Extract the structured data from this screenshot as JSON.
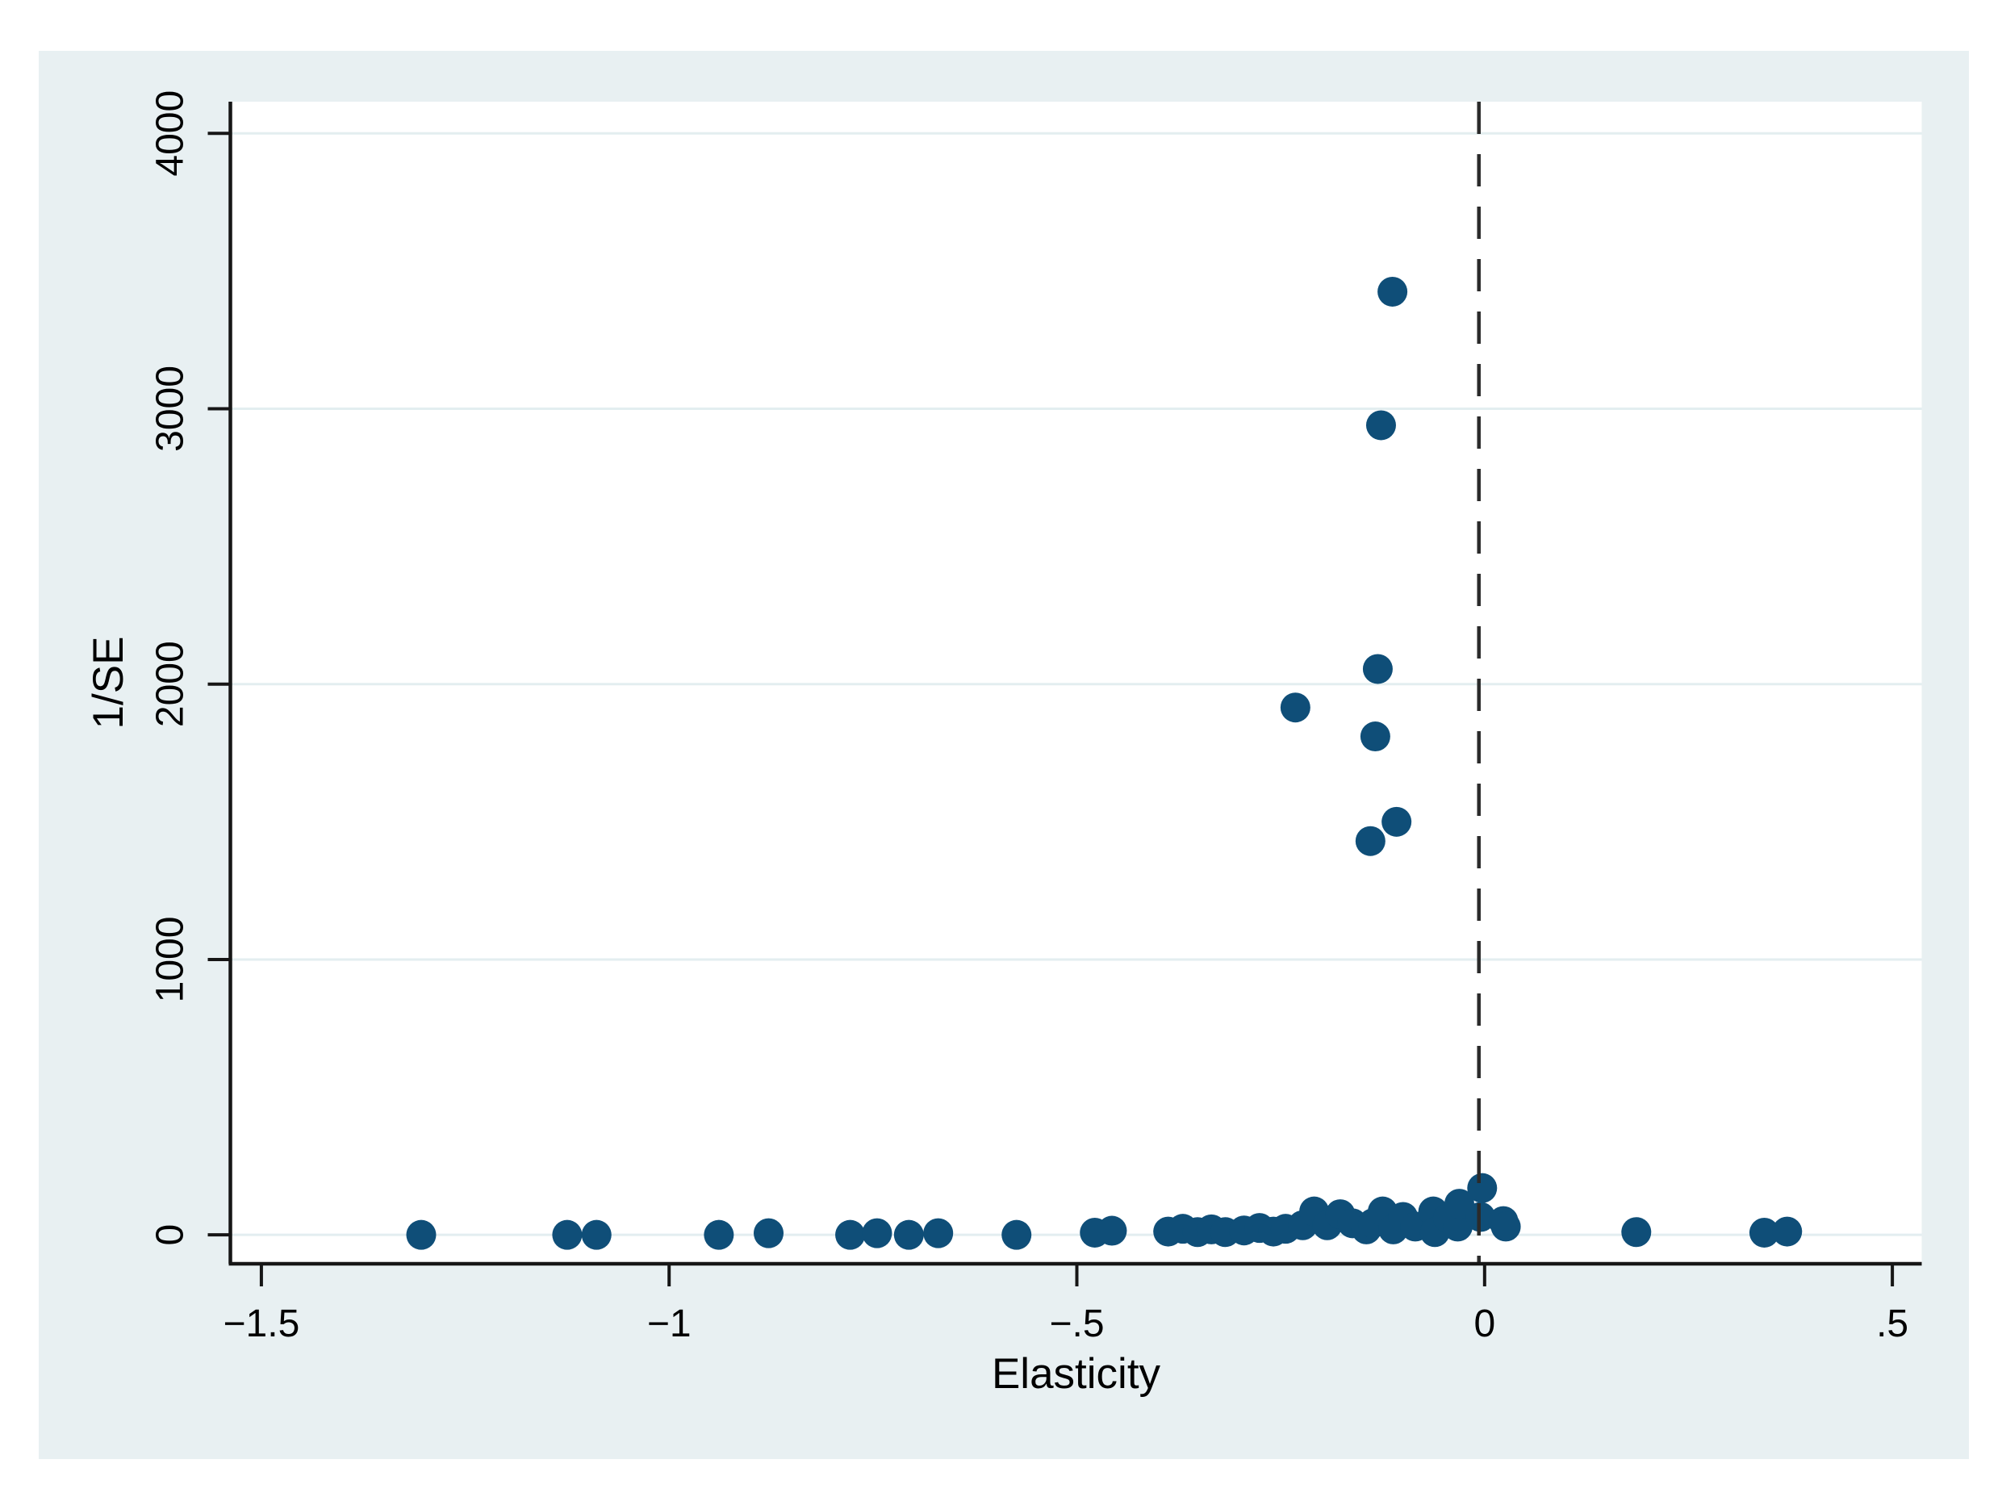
{
  "figure": {
    "kind": "funnel-plot",
    "xlabel": "Elasticity",
    "ylabel": "1/SE"
  },
  "chart_data": {
    "type": "scatter",
    "title": "",
    "xlabel": "Elasticity",
    "ylabel": "1/SE",
    "xlim": [
      -1.538,
      0.536
    ],
    "ylim": [
      -105,
      4115
    ],
    "grid": "horizontal",
    "legend": "none",
    "x_ticks": [
      {
        "value": -1.5,
        "label": "−1.5"
      },
      {
        "value": -1,
        "label": "−1"
      },
      {
        "value": -0.5,
        "label": "−.5"
      },
      {
        "value": 0,
        "label": "0"
      },
      {
        "value": 0.5,
        "label": ".5"
      }
    ],
    "y_ticks": [
      {
        "value": 0,
        "label": "0"
      },
      {
        "value": 1000,
        "label": "1000"
      },
      {
        "value": 2000,
        "label": "2000"
      },
      {
        "value": 3000,
        "label": "3000"
      },
      {
        "value": 4000,
        "label": "4000"
      }
    ],
    "ref_line": {
      "x": -0.007,
      "style": "dashed",
      "color": "#2b2b2b"
    },
    "marker": {
      "shape": "circle",
      "color": "#0f4e78",
      "radius_px": 18.5
    },
    "colors": {
      "card_background": "#e8f0f2",
      "plot_background": "#ffffff",
      "gridline": "#e3eef0",
      "axis": "#161616",
      "tick_label": "#000000"
    },
    "points": [
      [
        -0.113,
        3425
      ],
      [
        -0.127,
        2940
      ],
      [
        -0.131,
        2055
      ],
      [
        -0.232,
        1915
      ],
      [
        -0.134,
        1810
      ],
      [
        -0.108,
        1500
      ],
      [
        -0.14,
        1430
      ],
      [
        -1.304,
        0
      ],
      [
        -1.125,
        0
      ],
      [
        -1.089,
        0
      ],
      [
        -0.939,
        0
      ],
      [
        -0.878,
        6
      ],
      [
        -0.778,
        0
      ],
      [
        -0.745,
        6
      ],
      [
        -0.706,
        0
      ],
      [
        -0.67,
        6
      ],
      [
        -0.574,
        0
      ],
      [
        -0.478,
        8
      ],
      [
        -0.457,
        15
      ],
      [
        -0.388,
        12
      ],
      [
        -0.37,
        22
      ],
      [
        -0.352,
        10
      ],
      [
        -0.335,
        20
      ],
      [
        -0.318,
        10
      ],
      [
        -0.295,
        16
      ],
      [
        -0.276,
        25
      ],
      [
        -0.259,
        12
      ],
      [
        -0.244,
        22
      ],
      [
        -0.223,
        35
      ],
      [
        -0.209,
        85
      ],
      [
        -0.193,
        35
      ],
      [
        -0.177,
        75
      ],
      [
        -0.162,
        42
      ],
      [
        -0.145,
        20
      ],
      [
        -0.137,
        42
      ],
      [
        -0.125,
        85
      ],
      [
        -0.112,
        20
      ],
      [
        -0.1,
        65
      ],
      [
        -0.085,
        30
      ],
      [
        -0.063,
        85
      ],
      [
        -0.061,
        10
      ],
      [
        -0.045,
        60
      ],
      [
        -0.033,
        30
      ],
      [
        -0.031,
        113
      ],
      [
        -0.005,
        65
      ],
      [
        -0.003,
        170
      ],
      [
        0.023,
        50
      ],
      [
        0.026,
        30
      ],
      [
        0.186,
        10
      ],
      [
        0.343,
        8
      ],
      [
        0.371,
        12
      ]
    ]
  }
}
